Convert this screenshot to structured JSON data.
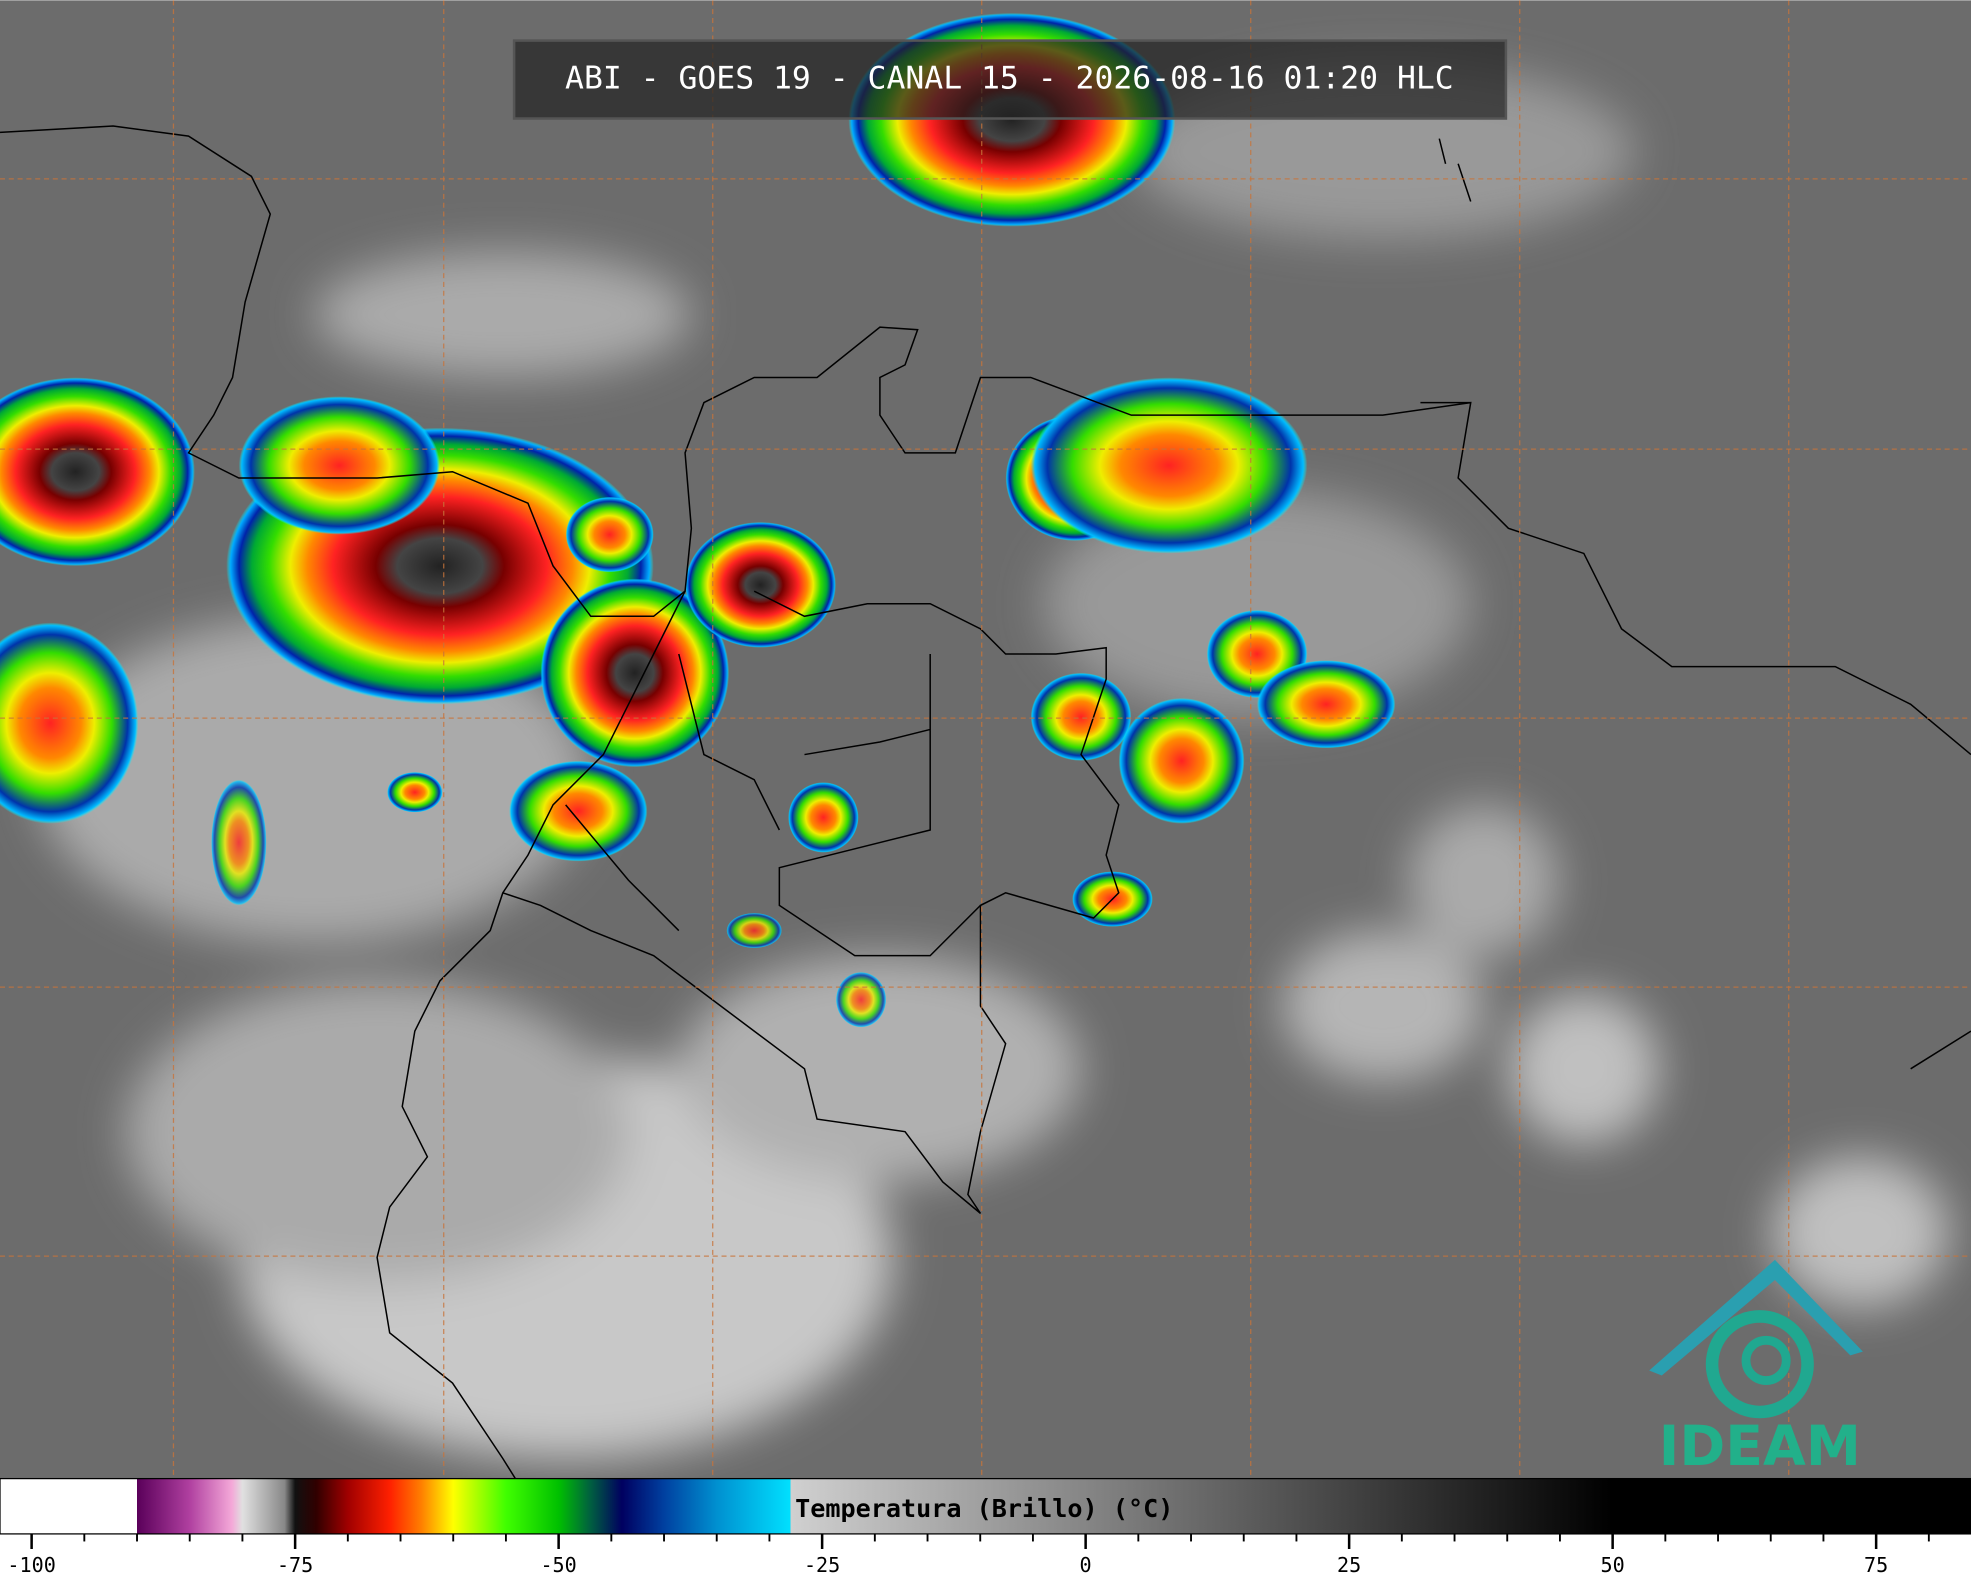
{
  "header": {
    "title": "ABI - GOES 19 - CANAL 15 - 2026-08-16 01:20 HLC"
  },
  "colorbar": {
    "label": "Temperatura (Brillo) (°C)",
    "range": [
      -103,
      84
    ],
    "ticks": [
      -100,
      -75,
      -50,
      -25,
      0,
      25,
      50,
      75
    ],
    "minor_ticks_every": 5,
    "stops": [
      {
        "value": -103,
        "color": "#ffffff"
      },
      {
        "value": -90,
        "color": "#ffffff"
      },
      {
        "value": -90,
        "color": "#5a005a"
      },
      {
        "value": -85,
        "color": "#b040a0"
      },
      {
        "value": -81,
        "color": "#f4a8d8"
      },
      {
        "value": -80,
        "color": "#e0e0e0"
      },
      {
        "value": -76,
        "color": "#888888"
      },
      {
        "value": -75,
        "color": "#111111"
      },
      {
        "value": -73,
        "color": "#300000"
      },
      {
        "value": -70,
        "color": "#a00000"
      },
      {
        "value": -66,
        "color": "#ff2000"
      },
      {
        "value": -63,
        "color": "#ff8000"
      },
      {
        "value": -60,
        "color": "#ffff00"
      },
      {
        "value": -55,
        "color": "#40ff00"
      },
      {
        "value": -50,
        "color": "#00c000"
      },
      {
        "value": -47,
        "color": "#006040"
      },
      {
        "value": -44,
        "color": "#000060"
      },
      {
        "value": -40,
        "color": "#0040a0"
      },
      {
        "value": -35,
        "color": "#0090d0"
      },
      {
        "value": -28,
        "color": "#00e0ff"
      },
      {
        "value": -28,
        "color": "#d0d0d0"
      },
      {
        "value": 50,
        "color": "#000000"
      },
      {
        "value": 84,
        "color": "#000000"
      }
    ]
  },
  "logo": {
    "text": "IDEAM"
  }
}
